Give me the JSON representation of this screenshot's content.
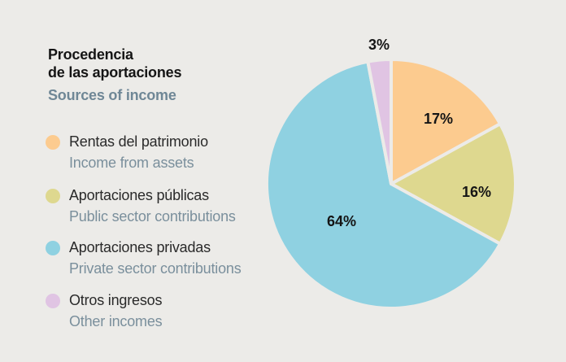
{
  "chart_data": {
    "type": "pie",
    "title": "Procedencia de las aportaciones",
    "title_lines": [
      "Procedencia",
      "de las aportaciones"
    ],
    "subtitle": "Sources of income",
    "slices": [
      {
        "label": "Rentas del patrimonio",
        "label_en": "Income from assets",
        "value": 17,
        "display": "17%",
        "color": "#fccb8f"
      },
      {
        "label": "Aportaciones públicas",
        "label_en": "Public sector contributions",
        "value": 16,
        "display": "16%",
        "color": "#ded88f"
      },
      {
        "label": "Aportaciones privadas",
        "label_en": "Private sector contributions",
        "value": 64,
        "display": "64%",
        "color": "#8fd1e1"
      },
      {
        "label": "Otros ingresos",
        "label_en": "Other incomes",
        "value": 3,
        "display": "3%",
        "color": "#e0c4e3"
      }
    ],
    "legend_position": "left"
  },
  "colors": {
    "background": "#ecebe8",
    "separator": "#ecebe8",
    "title": "#151515",
    "subtitle": "#6f8796"
  }
}
